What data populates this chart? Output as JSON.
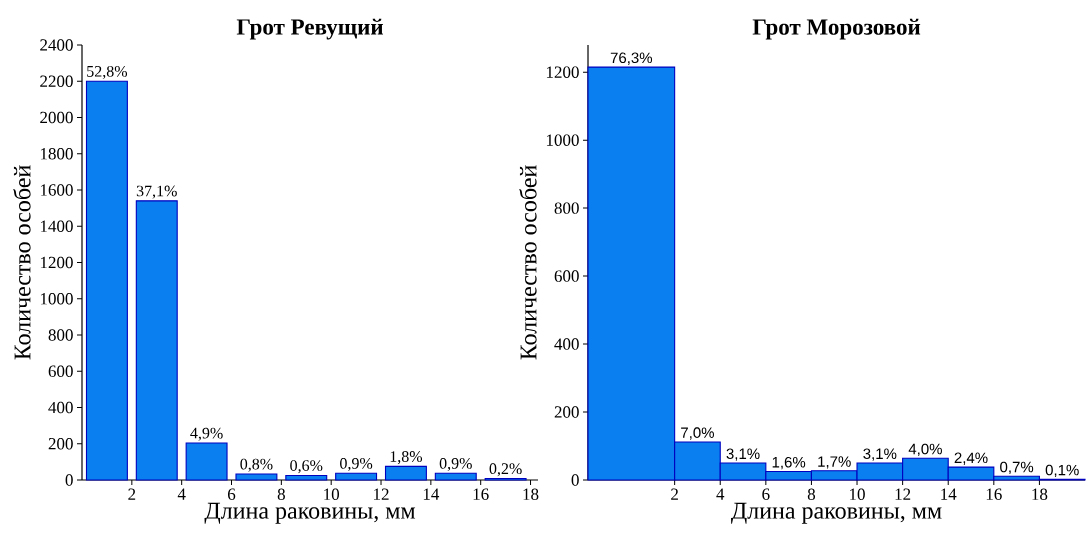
{
  "chart_data": [
    {
      "type": "histogram",
      "title": "Грот Ревущий",
      "xlabel": "Длина раковины, мм",
      "ylabel": "Количество особей",
      "bins": [
        0,
        2,
        4,
        6,
        8,
        10,
        12,
        14,
        16,
        18
      ],
      "values": [
        2200,
        1540,
        204,
        33,
        25,
        37,
        75,
        37,
        8
      ],
      "annotations": [
        {
          "text": "52,8%",
          "x": 1,
          "y": 2200
        },
        {
          "text": "37,1%",
          "x": 3,
          "y": 1540
        },
        {
          "text": "4,9%",
          "x": 5,
          "y": 204
        },
        {
          "text": "0,8%",
          "x": 7,
          "y": 33
        },
        {
          "text": "0,6%",
          "x": 9,
          "y": 25
        },
        {
          "text": "0,9%",
          "x": 11,
          "y": 37
        },
        {
          "text": "1,8%",
          "x": 13,
          "y": 75
        },
        {
          "text": "0,9%",
          "x": 15,
          "y": 37
        },
        {
          "text": "0,2%",
          "x": 17,
          "y": 8
        }
      ],
      "color": "#0a7ff0",
      "xlim": [
        0,
        18.3
      ],
      "xticks": [
        2,
        4,
        6,
        8,
        10,
        12,
        14,
        16,
        18
      ],
      "ylim": [
        0,
        2400
      ],
      "yticks": [
        0,
        200,
        400,
        600,
        800,
        1000,
        1200,
        1400,
        1600,
        1800,
        2000,
        2200,
        2400
      ]
    },
    {
      "type": "histogram",
      "title": "Грот Морозовой",
      "xlabel": "Длина раковины, мм",
      "ylabel": "Количество особей",
      "bins": [
        -1.8,
        2,
        4,
        6,
        8,
        10,
        12,
        14,
        16,
        18,
        20
      ],
      "values": [
        1215,
        112,
        50,
        25,
        27,
        50,
        64,
        38,
        11,
        2
      ],
      "annotations": [
        {
          "text": "76,3%",
          "x": 0.1,
          "y": 1215
        },
        {
          "text": "7,0%",
          "x": 3,
          "y": 112
        },
        {
          "text": "3,1%",
          "x": 5,
          "y": 50
        },
        {
          "text": "1,6%",
          "x": 7,
          "y": 25
        },
        {
          "text": "1,7%",
          "x": 9,
          "y": 27
        },
        {
          "text": "3,1%",
          "x": 11,
          "y": 50
        },
        {
          "text": "4,0%",
          "x": 13,
          "y": 64
        },
        {
          "text": "2,4%",
          "x": 15,
          "y": 38
        },
        {
          "text": "0,7%",
          "x": 17,
          "y": 11
        },
        {
          "text": "0,1%",
          "x": 19,
          "y": 2
        }
      ],
      "color": "#0a7ff0",
      "xlim": [
        -1.8,
        20
      ],
      "xticks": [
        2,
        4,
        6,
        8,
        10,
        12,
        14,
        16,
        18
      ],
      "ylim": [
        0,
        1280
      ],
      "yticks": [
        0,
        200,
        400,
        600,
        800,
        1000,
        1200
      ]
    }
  ]
}
